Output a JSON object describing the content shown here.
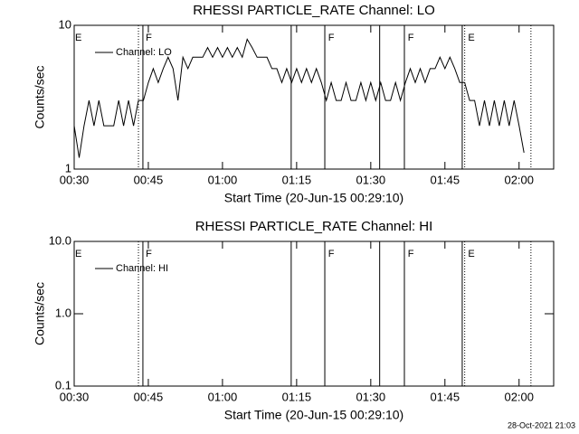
{
  "chart_data": [
    {
      "type": "line",
      "title": "RHESSI PARTICLE_RATE Channel: LO",
      "xlabel": "Start Time (20-Jun-15 00:29:10)",
      "ylabel": "Counts/sec",
      "x": [
        30,
        31,
        32,
        33,
        34,
        35,
        36,
        37,
        38,
        39,
        40,
        41,
        42,
        43,
        44,
        45,
        46,
        47,
        48,
        49,
        50,
        51,
        52,
        53,
        54,
        55,
        56,
        57,
        58,
        59,
        60,
        61,
        62,
        63,
        64,
        65,
        66,
        67,
        68,
        69,
        70,
        71,
        72,
        73,
        74,
        75,
        76,
        77,
        78,
        79,
        80,
        81,
        82,
        83,
        84,
        85,
        86,
        87,
        88,
        89,
        90,
        91,
        92,
        93,
        94,
        95,
        96,
        97,
        98,
        99,
        100,
        101,
        102,
        103,
        104,
        105,
        106,
        107,
        108,
        109,
        110,
        111,
        112,
        113,
        114,
        115,
        116,
        117,
        118,
        119,
        120,
        121
      ],
      "series": [
        {
          "name": "Channel: LO",
          "color": "#000000",
          "values": [
            2,
            1.2,
            2,
            3,
            2,
            3,
            2,
            2,
            2,
            3,
            2,
            3,
            2,
            3,
            3,
            4,
            5,
            4,
            5,
            6,
            5,
            3,
            6,
            5,
            6,
            6,
            6,
            7,
            6,
            7,
            6,
            7,
            6,
            7,
            6,
            8,
            7,
            6,
            6,
            6,
            5,
            5,
            4,
            5,
            4,
            5,
            4,
            5,
            4,
            5,
            4,
            3,
            4,
            3,
            3,
            4,
            3,
            3,
            4,
            3,
            4,
            3,
            4,
            3,
            3,
            4,
            3,
            4,
            5,
            4,
            5,
            4,
            5,
            5,
            6,
            5,
            6,
            5,
            4,
            4,
            3,
            3,
            2,
            3,
            2,
            3,
            2,
            3,
            2,
            3,
            2,
            1.3
          ]
        }
      ],
      "xlim": [
        30,
        127
      ],
      "xticks": [
        {
          "value": 30,
          "label": "00:30"
        },
        {
          "value": 45,
          "label": "00:45"
        },
        {
          "value": 60,
          "label": "01:00"
        },
        {
          "value": 75,
          "label": "01:15"
        },
        {
          "value": 90,
          "label": "01:30"
        },
        {
          "value": 105,
          "label": "01:45"
        },
        {
          "value": 120,
          "label": "02:00"
        }
      ],
      "ylim": [
        1,
        10
      ],
      "yticks": [
        1,
        10
      ],
      "log_y": true,
      "legend": "upper left",
      "vlines": [
        {
          "x": 43.0,
          "style": "dotted"
        },
        {
          "x": 43.9,
          "style": "solid"
        },
        {
          "x": 73.9,
          "style": "solid"
        },
        {
          "x": 80.7,
          "style": "solid"
        },
        {
          "x": 91.8,
          "style": "solid"
        },
        {
          "x": 96.8,
          "style": "solid"
        },
        {
          "x": 108.5,
          "style": "solid"
        },
        {
          "x": 109.0,
          "style": "dotted"
        },
        {
          "x": 122.4,
          "style": "dotted"
        }
      ],
      "flags": [
        {
          "x": 30.0,
          "label": "E"
        },
        {
          "x": 44.3,
          "label": "F"
        },
        {
          "x": 81.2,
          "label": "F"
        },
        {
          "x": 97.3,
          "label": "F"
        },
        {
          "x": 109.5,
          "label": "E"
        }
      ]
    },
    {
      "type": "line",
      "title": "RHESSI PARTICLE_RATE Channel: HI",
      "xlabel": "Start Time (20-Jun-15 00:29:10)",
      "ylabel": "Counts/sec",
      "x": [],
      "series": [
        {
          "name": "Channel: HI",
          "color": "#000000",
          "values": []
        }
      ],
      "xlim": [
        30,
        127
      ],
      "xticks": [
        {
          "value": 30,
          "label": "00:30"
        },
        {
          "value": 45,
          "label": "00:45"
        },
        {
          "value": 60,
          "label": "01:00"
        },
        {
          "value": 75,
          "label": "01:15"
        },
        {
          "value": 90,
          "label": "01:30"
        },
        {
          "value": 105,
          "label": "01:45"
        },
        {
          "value": 120,
          "label": "02:00"
        }
      ],
      "ylim": [
        0.1,
        10
      ],
      "yticks": [
        {
          "value": 0.1,
          "label": "0.1"
        },
        {
          "value": 1,
          "label": "1.0"
        },
        {
          "value": 10,
          "label": "10.0"
        }
      ],
      "log_y": true,
      "legend": "upper left",
      "vlines": [
        {
          "x": 43.0,
          "style": "dotted"
        },
        {
          "x": 43.9,
          "style": "solid"
        },
        {
          "x": 73.9,
          "style": "solid"
        },
        {
          "x": 80.7,
          "style": "solid"
        },
        {
          "x": 91.8,
          "style": "solid"
        },
        {
          "x": 96.8,
          "style": "solid"
        },
        {
          "x": 108.5,
          "style": "solid"
        },
        {
          "x": 109.0,
          "style": "dotted"
        },
        {
          "x": 122.4,
          "style": "dotted"
        }
      ],
      "flags": [
        {
          "x": 30.0,
          "label": "E"
        },
        {
          "x": 44.3,
          "label": "F"
        },
        {
          "x": 81.2,
          "label": "F"
        },
        {
          "x": 97.3,
          "label": "F"
        },
        {
          "x": 109.5,
          "label": "E"
        }
      ]
    }
  ],
  "footer": "28-Oct-2021 21:03"
}
